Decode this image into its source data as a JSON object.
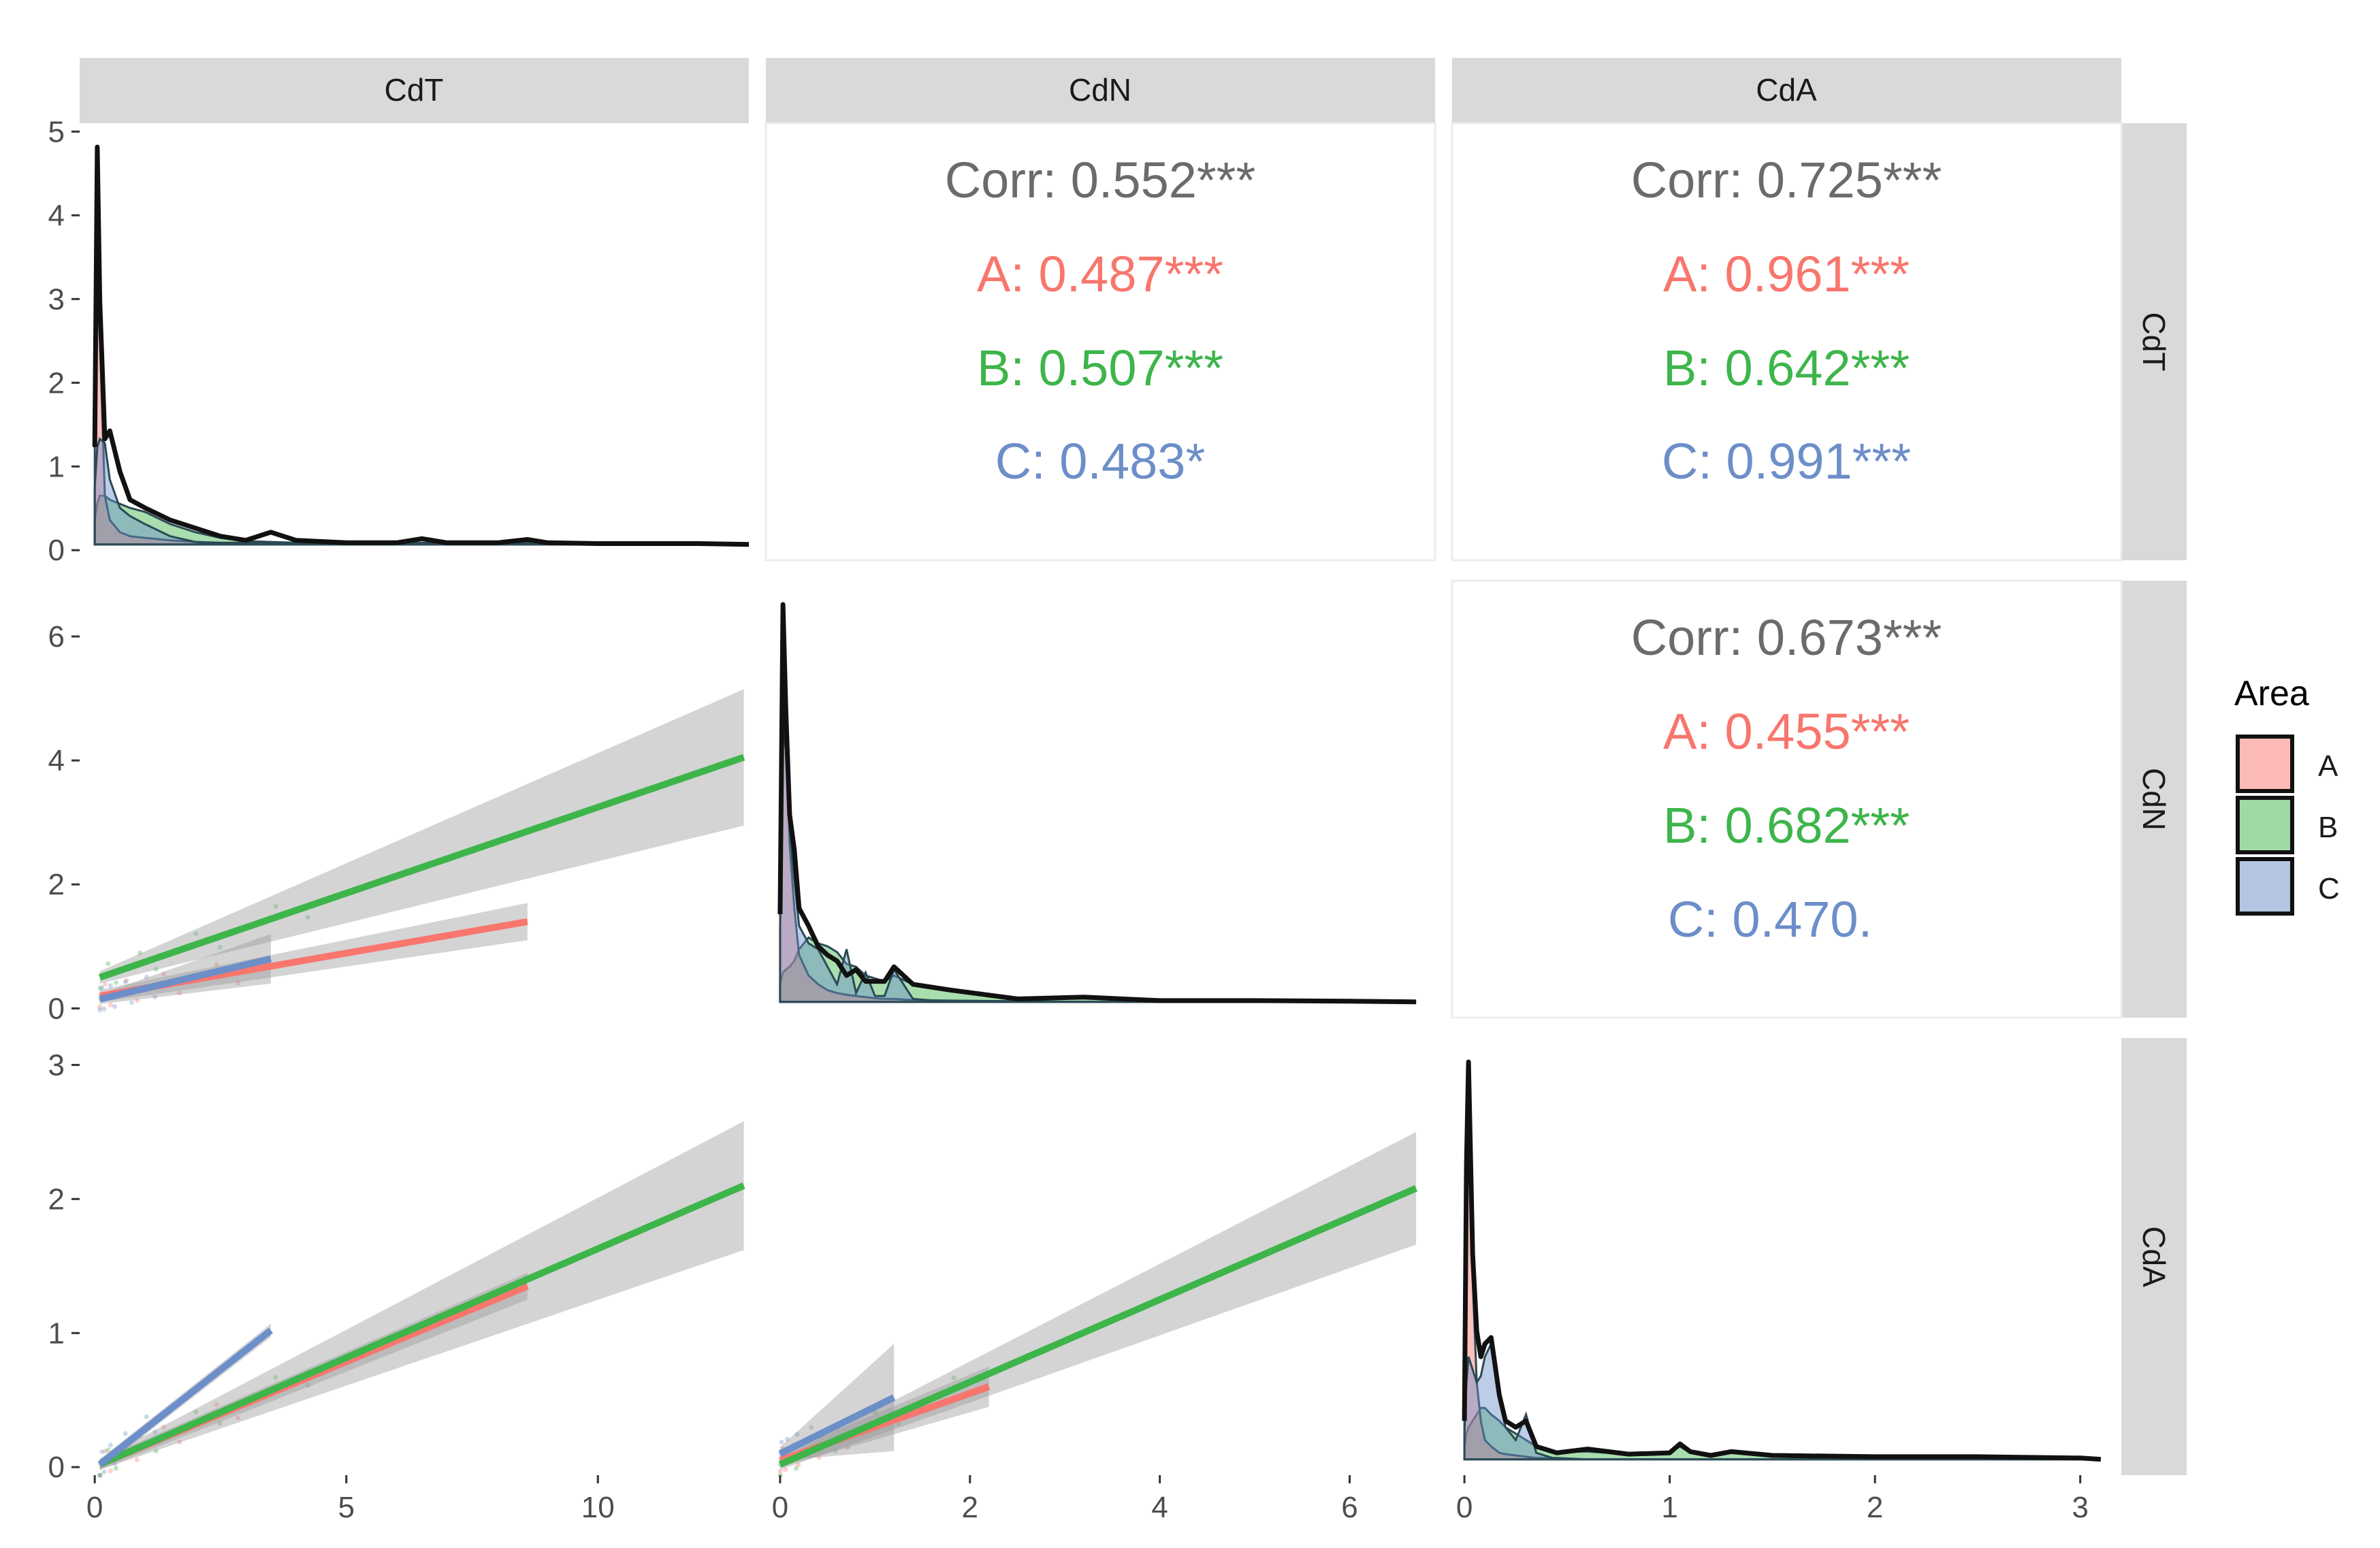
{
  "colors": {
    "A": "#F8766D",
    "B": "#3DB54A",
    "C": "#6C8EC9",
    "overall": "#6b6b6b",
    "strip": "#D9D9D9",
    "band": "#999999",
    "outline": "#111111"
  },
  "variables": [
    "CdT",
    "CdN",
    "CdA"
  ],
  "legend": {
    "title": "Area",
    "items": [
      {
        "key": "A",
        "label": "A"
      },
      {
        "key": "B",
        "label": "B"
      },
      {
        "key": "C",
        "label": "C"
      }
    ]
  },
  "chart_data": {
    "type": "scatter",
    "layout": "pairs-matrix",
    "groups": [
      "A",
      "B",
      "C"
    ],
    "axes": {
      "CdT": {
        "range": [
          -0.3,
          13.0
        ],
        "ticks": [
          0,
          5,
          10
        ],
        "diag_range": [
          0,
          5.2
        ],
        "diag_ticks": [
          0,
          1,
          2,
          3,
          4,
          5
        ]
      },
      "CdN": {
        "range": [
          -0.15,
          6.9
        ],
        "ticks": [
          0,
          2,
          4,
          6
        ]
      },
      "CdA": {
        "range": [
          -0.06,
          3.2
        ],
        "ticks": [
          0,
          1,
          2,
          3
        ]
      }
    },
    "correlations": [
      {
        "row": "CdT",
        "col": "CdN",
        "overall": "Corr: 0.552***",
        "A": "A: 0.487***",
        "B": "B: 0.507***",
        "C": "C: 0.483*"
      },
      {
        "row": "CdT",
        "col": "CdA",
        "overall": "Corr: 0.725***",
        "A": "A: 0.961***",
        "B": "B: 0.642***",
        "C": "C: 0.991***"
      },
      {
        "row": "CdN",
        "col": "CdA",
        "overall": "Corr: 0.673***",
        "A": "A: 0.455***",
        "B": "B: 0.682***",
        "C": "C: 0.470."
      }
    ],
    "regressions": [
      {
        "x": "CdT",
        "y": "CdN",
        "lines": [
          {
            "group": "A",
            "x": [
              0.1,
              8.6
            ],
            "y": [
              0.2,
              1.4
            ],
            "se": [
              0.1,
              0.3
            ]
          },
          {
            "group": "B",
            "x": [
              0.1,
              12.9
            ],
            "y": [
              0.5,
              4.05
            ],
            "se": [
              0.1,
              1.1
            ]
          },
          {
            "group": "C",
            "x": [
              0.1,
              3.5
            ],
            "y": [
              0.15,
              0.8
            ],
            "se": [
              0.08,
              0.4
            ]
          }
        ]
      },
      {
        "x": "CdT",
        "y": "CdA",
        "lines": [
          {
            "group": "A",
            "x": [
              0.1,
              8.6
            ],
            "y": [
              0.02,
              1.35
            ],
            "se": [
              0.04,
              0.1
            ]
          },
          {
            "group": "B",
            "x": [
              0.1,
              12.9
            ],
            "y": [
              0.02,
              2.1
            ],
            "se": [
              0.04,
              0.48
            ]
          },
          {
            "group": "C",
            "x": [
              0.1,
              3.5
            ],
            "y": [
              0.02,
              1.02
            ],
            "se": [
              0.04,
              0.05
            ]
          }
        ]
      },
      {
        "x": "CdN",
        "y": "CdA",
        "lines": [
          {
            "group": "A",
            "x": [
              0.0,
              2.2
            ],
            "y": [
              0.05,
              0.6
            ],
            "se": [
              0.05,
              0.15
            ]
          },
          {
            "group": "B",
            "x": [
              0.0,
              6.7
            ],
            "y": [
              0.02,
              2.08
            ],
            "se": [
              0.04,
              0.42
            ]
          },
          {
            "group": "C",
            "x": [
              0.0,
              1.2
            ],
            "y": [
              0.1,
              0.52
            ],
            "se": [
              0.05,
              0.4
            ]
          }
        ]
      }
    ],
    "densities": {
      "CdT": {
        "x": [
          0,
          0.05,
          0.1,
          0.2,
          0.3,
          0.5,
          0.7,
          1,
          1.5,
          2,
          2.5,
          3,
          3.5,
          4,
          5,
          6,
          6.5,
          7,
          8,
          8.6,
          9,
          10,
          11,
          12,
          13
        ],
        "total": [
          1.2,
          4.9,
          3.0,
          1.3,
          1.4,
          0.9,
          0.55,
          0.45,
          0.3,
          0.2,
          0.1,
          0.05,
          0.15,
          0.05,
          0.02,
          0.02,
          0.07,
          0.02,
          0.02,
          0.06,
          0.02,
          0.01,
          0.01,
          0.01,
          0.0
        ],
        "A": [
          1.3,
          4.5,
          2.6,
          0.6,
          0.3,
          0.15,
          0.1,
          0.08,
          0.05,
          0.03,
          0.02,
          0.02,
          0.02,
          0.02,
          0.02,
          0.02,
          0.02,
          0.01,
          0.01,
          0.01,
          0.0,
          0.0,
          0.0,
          0.0,
          0.0
        ],
        "B": [
          0.3,
          0.5,
          0.6,
          0.6,
          0.55,
          0.5,
          0.45,
          0.4,
          0.25,
          0.15,
          0.08,
          0.04,
          0.03,
          0.02,
          0.02,
          0.01,
          0.02,
          0.01,
          0.01,
          0.02,
          0.01,
          0.0,
          0.0,
          0.0,
          0.0
        ],
        "C": [
          0.7,
          1.2,
          1.3,
          1.25,
          0.8,
          0.45,
          0.35,
          0.25,
          0.1,
          0.03,
          0.01,
          0.0,
          0.0,
          0.0,
          0.0,
          0.0,
          0.0,
          0.0,
          0.0,
          0.0,
          0.0,
          0.0,
          0.0,
          0.0,
          0.0
        ]
      },
      "CdN": {
        "x": [
          0,
          0.03,
          0.06,
          0.1,
          0.15,
          0.2,
          0.3,
          0.4,
          0.5,
          0.6,
          0.7,
          0.8,
          0.9,
          1.0,
          1.1,
          1.2,
          1.4,
          1.8,
          2.5,
          3.2,
          4,
          5,
          6,
          6.7
        ],
        "total": [
          1.5,
          6.8,
          5.0,
          3.2,
          2.6,
          1.6,
          1.3,
          0.95,
          0.8,
          0.7,
          0.45,
          0.55,
          0.35,
          0.35,
          0.35,
          0.6,
          0.3,
          0.2,
          0.05,
          0.08,
          0.02,
          0.02,
          0.01,
          0.0
        ],
        "A": [
          1.2,
          6.5,
          4.7,
          2.7,
          1.6,
          0.8,
          0.45,
          0.3,
          0.2,
          0.15,
          0.12,
          0.1,
          0.08,
          0.06,
          0.05,
          0.05,
          0.03,
          0.02,
          0.01,
          0.0,
          0.0,
          0.0,
          0.0,
          0.0
        ],
        "B": [
          0.3,
          0.5,
          0.55,
          0.6,
          0.7,
          0.9,
          1.1,
          1.0,
          0.95,
          0.85,
          0.65,
          0.6,
          0.45,
          0.4,
          0.35,
          0.45,
          0.3,
          0.2,
          0.06,
          0.07,
          0.02,
          0.01,
          0.0,
          0.0
        ],
        "C": [
          1.3,
          4.8,
          4.3,
          3.0,
          2.1,
          1.3,
          1.0,
          0.9,
          0.6,
          0.3,
          0.9,
          0.15,
          0.5,
          0.1,
          0.1,
          0.55,
          0.05,
          0.0,
          0.0,
          0.0,
          0.0,
          0.0,
          0.0,
          0.0
        ]
      },
      "CdA": {
        "x": [
          0,
          0.01,
          0.02,
          0.04,
          0.06,
          0.08,
          0.1,
          0.13,
          0.17,
          0.2,
          0.25,
          0.3,
          0.35,
          0.45,
          0.6,
          0.8,
          1.0,
          1.05,
          1.1,
          1.2,
          1.3,
          1.5,
          2.0,
          2.5,
          3.0,
          3.1
        ],
        "total": [
          0.3,
          2.3,
          3.1,
          1.6,
          1.0,
          0.8,
          0.9,
          0.95,
          0.5,
          0.3,
          0.25,
          0.3,
          0.1,
          0.05,
          0.08,
          0.04,
          0.05,
          0.12,
          0.06,
          0.03,
          0.06,
          0.03,
          0.02,
          0.02,
          0.01,
          0.0
        ],
        "A": [
          0.3,
          2.2,
          3.0,
          1.4,
          0.6,
          0.3,
          0.15,
          0.1,
          0.05,
          0.04,
          0.03,
          0.02,
          0.01,
          0.01,
          0.0,
          0.0,
          0.0,
          0.0,
          0.0,
          0.0,
          0.0,
          0.0,
          0.0,
          0.0,
          0.0,
          0.0
        ],
        "B": [
          0.1,
          0.2,
          0.25,
          0.3,
          0.35,
          0.4,
          0.4,
          0.35,
          0.3,
          0.25,
          0.2,
          0.15,
          0.1,
          0.06,
          0.06,
          0.04,
          0.05,
          0.1,
          0.05,
          0.03,
          0.05,
          0.02,
          0.02,
          0.01,
          0.01,
          0.0
        ],
        "C": [
          0.2,
          0.6,
          0.8,
          0.7,
          0.6,
          0.65,
          0.8,
          0.9,
          0.5,
          0.25,
          0.15,
          0.35,
          0.05,
          0.0,
          0.0,
          0.0,
          0.0,
          0.0,
          0.0,
          0.0,
          0.0,
          0.0,
          0.0,
          0.0,
          0.0,
          0.0
        ]
      }
    }
  }
}
